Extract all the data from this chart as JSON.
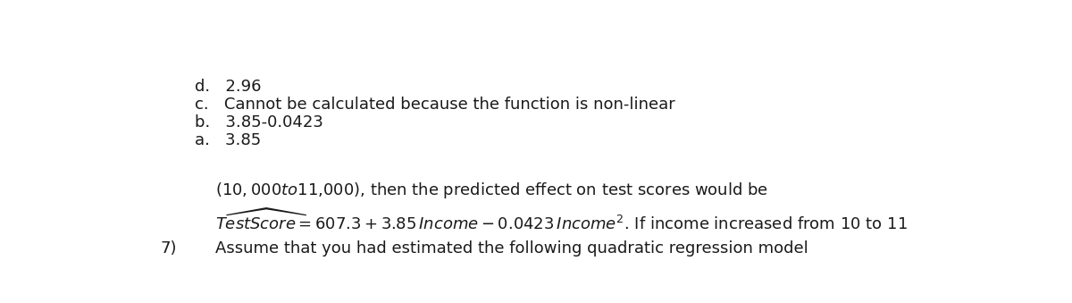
{
  "question_number": "7)",
  "line1": "Assume that you had estimated the following quadratic regression model",
  "eq_suffix": ". If income increased from 10 to 11",
  "line3": "($10,000 to $11,000), then the predicted effect on test scores would be",
  "opt_a": "a.   3.85",
  "opt_b": "b.   3.85-0.0423",
  "opt_c": "c.   Cannot be calculated because the function is non-linear",
  "opt_d": "d.   2.96",
  "bg_color": "#ffffff",
  "text_color": "#1a1a1a",
  "font_size": 13.0,
  "fig_width": 12.0,
  "fig_height": 3.39
}
